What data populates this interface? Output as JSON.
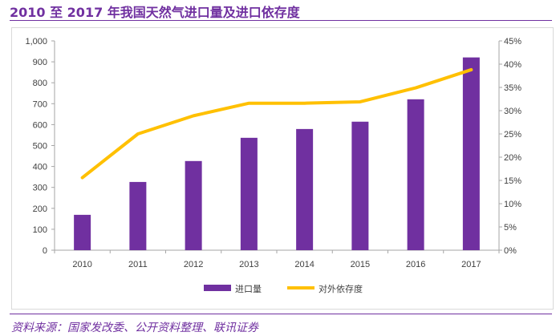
{
  "title": "2010 至 2017 年我国天然气进口量及进口依存度",
  "footer": "资料来源：国家发改委、公开资料整理、联讯证券",
  "chart_data": {
    "type": "bar+line",
    "categories": [
      "2010",
      "2011",
      "2012",
      "2013",
      "2014",
      "2015",
      "2016",
      "2017"
    ],
    "series": [
      {
        "name": "进口量",
        "type": "bar",
        "axis": "left",
        "color": "#7030a0",
        "values": [
          169,
          326,
          426,
          537,
          579,
          614,
          721,
          921
        ]
      },
      {
        "name": "对外依存度",
        "type": "line",
        "axis": "right",
        "color": "#ffc000",
        "values": [
          15.6,
          25.0,
          28.9,
          31.6,
          31.6,
          31.9,
          34.9,
          38.8
        ]
      }
    ],
    "left_axis": {
      "range": [
        0,
        1000
      ],
      "ticks": [
        "0",
        "100",
        "200",
        "300",
        "400",
        "500",
        "600",
        "700",
        "800",
        "900",
        "1,000"
      ]
    },
    "right_axis": {
      "range": [
        0,
        45
      ],
      "unit": "%",
      "ticks": [
        "0%",
        "5%",
        "10%",
        "15%",
        "20%",
        "25%",
        "30%",
        "35%",
        "40%",
        "45%"
      ]
    },
    "grid": false,
    "legend": "bottom"
  }
}
